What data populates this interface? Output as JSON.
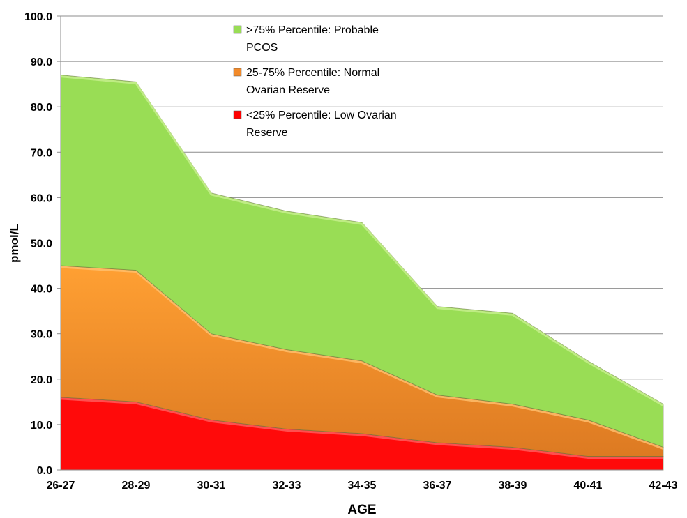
{
  "chart_data": {
    "type": "area",
    "stacked": true,
    "title": "",
    "xlabel": "AGE",
    "ylabel": "pmol/L",
    "ylim": [
      0,
      100
    ],
    "yticks": [
      "0.0",
      "10.0",
      "20.0",
      "30.0",
      "40.0",
      "50.0",
      "60.0",
      "70.0",
      "80.0",
      "90.0",
      "100.0"
    ],
    "categories": [
      "26-27",
      "28-29",
      "30-31",
      "32-33",
      "34-35",
      "36-37",
      "38-39",
      "40-41",
      "42-43"
    ],
    "grid": true,
    "legend_position": "top-center",
    "series": [
      {
        "name": "<25% Percentile: Low Ovarian Reserve",
        "legend_lines": [
          "<25% Percentile: Low Ovarian",
          "Reserve"
        ],
        "color": "#ff0000",
        "values": [
          16,
          15,
          11,
          9,
          8,
          6,
          5,
          3,
          3
        ]
      },
      {
        "name": "25-75% Percentile: Normal Ovarian Reserve",
        "legend_lines": [
          "25-75% Percentile: Normal",
          "Ovarian Reserve"
        ],
        "color": "#f28a2a",
        "values": [
          29,
          29,
          19,
          17.5,
          16,
          10.5,
          9.5,
          8,
          2
        ]
      },
      {
        "name": ">75% Percentile: Probable PCOS",
        "legend_lines": [
          ">75% Percentile: Probable",
          "PCOS"
        ],
        "color": "#99dd55",
        "values": [
          42,
          41.5,
          31,
          30.5,
          30.5,
          19.5,
          20,
          13,
          9.5
        ]
      }
    ]
  }
}
